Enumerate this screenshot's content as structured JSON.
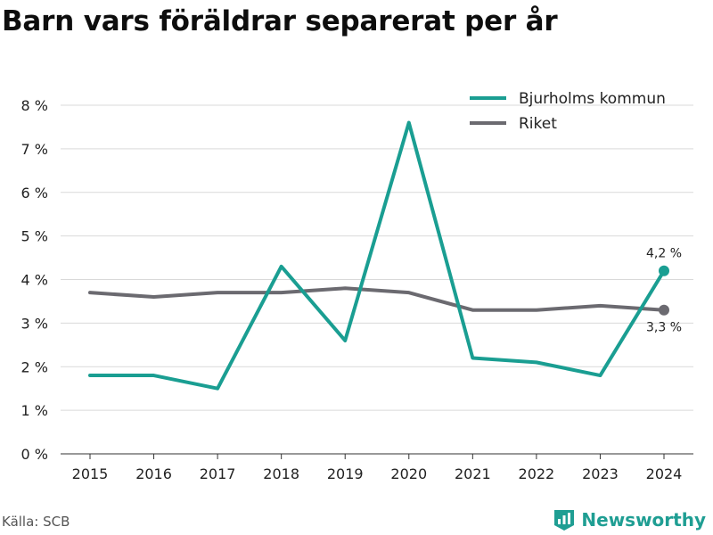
{
  "title": "Barn vars föräldrar separerat per år",
  "source": "Källa: SCB",
  "brand": {
    "name": "Newsworthy",
    "icon": "newsworthy-logo-icon",
    "color": "#1f9e93"
  },
  "chart_data": {
    "type": "line",
    "title": "Barn vars föräldrar separerat per år",
    "x": [
      "2015",
      "2016",
      "2017",
      "2018",
      "2019",
      "2020",
      "2021",
      "2022",
      "2023",
      "2024"
    ],
    "ylim": [
      0,
      8
    ],
    "y_ticks": [
      0,
      1,
      2,
      3,
      4,
      5,
      6,
      7,
      8
    ],
    "y_tick_labels": [
      "0 %",
      "1 %",
      "2 %",
      "3 %",
      "4 %",
      "5 %",
      "6 %",
      "7 %",
      "8 %"
    ],
    "grid": "horizontal",
    "legend_position": "top-right",
    "series": [
      {
        "name": "Bjurholms kommun",
        "color": "#1a9e92",
        "values": [
          1.8,
          1.8,
          1.5,
          4.3,
          2.6,
          7.6,
          2.2,
          2.1,
          1.8,
          4.2
        ],
        "end_label": "4,2 %"
      },
      {
        "name": "Riket",
        "color": "#6b6a70",
        "values": [
          3.7,
          3.6,
          3.7,
          3.7,
          3.8,
          3.7,
          3.3,
          3.3,
          3.4,
          3.3
        ],
        "end_label": "3,3 %"
      }
    ]
  }
}
